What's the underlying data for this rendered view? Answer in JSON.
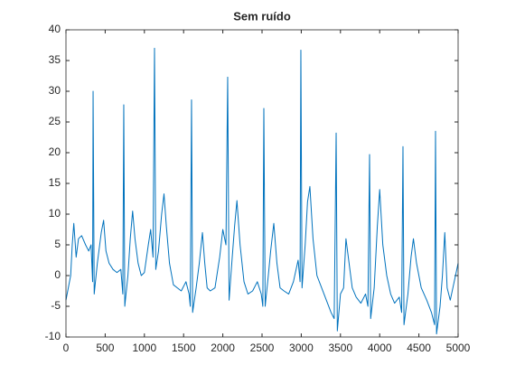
{
  "chart_data": {
    "type": "line",
    "title": "Sem ruído",
    "x": [
      0,
      30,
      60,
      80,
      100,
      130,
      160,
      200,
      250,
      290,
      320,
      340,
      346,
      360,
      400,
      450,
      480,
      510,
      550,
      600,
      650,
      700,
      725,
      737,
      750,
      790,
      820,
      850,
      880,
      920,
      960,
      1000,
      1050,
      1080,
      1110,
      1129,
      1145,
      1180,
      1220,
      1250,
      1280,
      1320,
      1370,
      1420,
      1470,
      1530,
      1570,
      1585,
      1601,
      1615,
      1660,
      1700,
      1740,
      1770,
      1800,
      1840,
      1900,
      1960,
      2000,
      2040,
      2062,
      2080,
      2120,
      2150,
      2180,
      2220,
      2270,
      2320,
      2380,
      2440,
      2490,
      2510,
      2523,
      2540,
      2580,
      2610,
      2650,
      2690,
      2730,
      2780,
      2840,
      2900,
      2960,
      2985,
      2995,
      3010,
      3050,
      3080,
      3110,
      3150,
      3200,
      3260,
      3320,
      3380,
      3420,
      3445,
      3460,
      3500,
      3540,
      3570,
      3600,
      3650,
      3700,
      3760,
      3820,
      3850,
      3871,
      3885,
      3930,
      3970,
      4000,
      4040,
      4090,
      4140,
      4190,
      4250,
      4280,
      4297,
      4310,
      4360,
      4400,
      4430,
      4470,
      4530,
      4600,
      4660,
      4700,
      4712,
      4725,
      4770,
      4800,
      4830,
      4860,
      4900,
      4950,
      5000
    ],
    "series": [
      {
        "color": "#0072bd",
        "values": [
          -4,
          -2,
          0,
          5,
          8.5,
          3,
          6,
          6.5,
          5,
          4,
          5,
          -1,
          30,
          -3,
          2,
          7,
          9,
          4,
          2,
          1,
          0.5,
          1,
          -3,
          27.8,
          -5,
          0,
          6,
          10.5,
          6,
          2,
          0,
          0.5,
          5,
          7.5,
          3,
          37,
          1,
          4,
          10,
          13.3,
          8,
          2,
          -1.5,
          -2,
          -2.5,
          -1,
          -3,
          -5,
          28.6,
          -6,
          -2,
          2,
          7,
          2,
          -2,
          -2.5,
          -2,
          3,
          7.5,
          5,
          32.3,
          -4,
          3,
          8,
          12.2,
          5,
          -1,
          -3,
          -2.5,
          -1,
          -3,
          -5,
          27.2,
          -5,
          0,
          4,
          8.5,
          2,
          -2,
          -2.5,
          -3,
          -1,
          2.5,
          -1,
          36.7,
          -2,
          5,
          12,
          14.5,
          6,
          0,
          -2,
          -4,
          -6,
          -7,
          23.2,
          -9,
          -3,
          -2,
          6,
          3,
          -2,
          -3.5,
          -4.5,
          -3,
          -5,
          19.7,
          -7,
          -2,
          8,
          14,
          5,
          0,
          -3,
          -4.5,
          -3.5,
          -6,
          21,
          -8,
          -3,
          3,
          6,
          2,
          -2,
          -4,
          -6,
          -8,
          23.5,
          -9.5,
          -5,
          0,
          7,
          -2,
          -4,
          -1,
          2
        ]
      }
    ],
    "xlim": [
      0,
      5000
    ],
    "xticks": [
      0,
      500,
      1000,
      1500,
      2000,
      2500,
      3000,
      3500,
      4000,
      4500,
      5000
    ],
    "ylim": [
      -10,
      40
    ],
    "yticks": [
      -10,
      -5,
      0,
      5,
      10,
      15,
      20,
      25,
      30,
      35,
      40
    ],
    "grid": false
  }
}
